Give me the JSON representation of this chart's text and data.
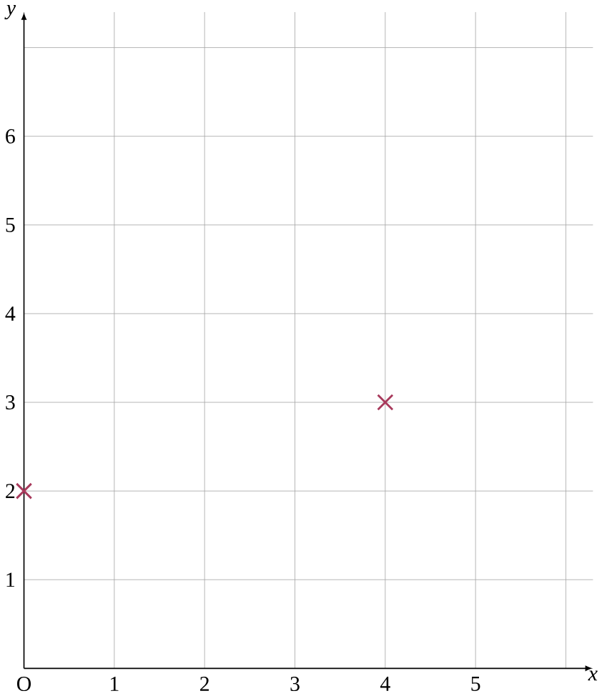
{
  "chart_data": {
    "type": "scatter",
    "xlabel": "x",
    "ylabel": "y",
    "x": [
      0,
      4
    ],
    "series": [
      {
        "color": "#a83a5c",
        "values": [
          2,
          3
        ]
      }
    ],
    "marker": "cross",
    "grid": true,
    "xlim": [
      0,
      6.3
    ],
    "ylim": [
      0,
      7.4
    ],
    "xticks": [
      {
        "value": 0,
        "label": "O"
      },
      1,
      2,
      3,
      4,
      5,
      {
        "value": 6,
        "label": null
      }
    ],
    "yticks": [
      1,
      2,
      3,
      4,
      5,
      6,
      {
        "value": 7,
        "label": null
      }
    ]
  }
}
